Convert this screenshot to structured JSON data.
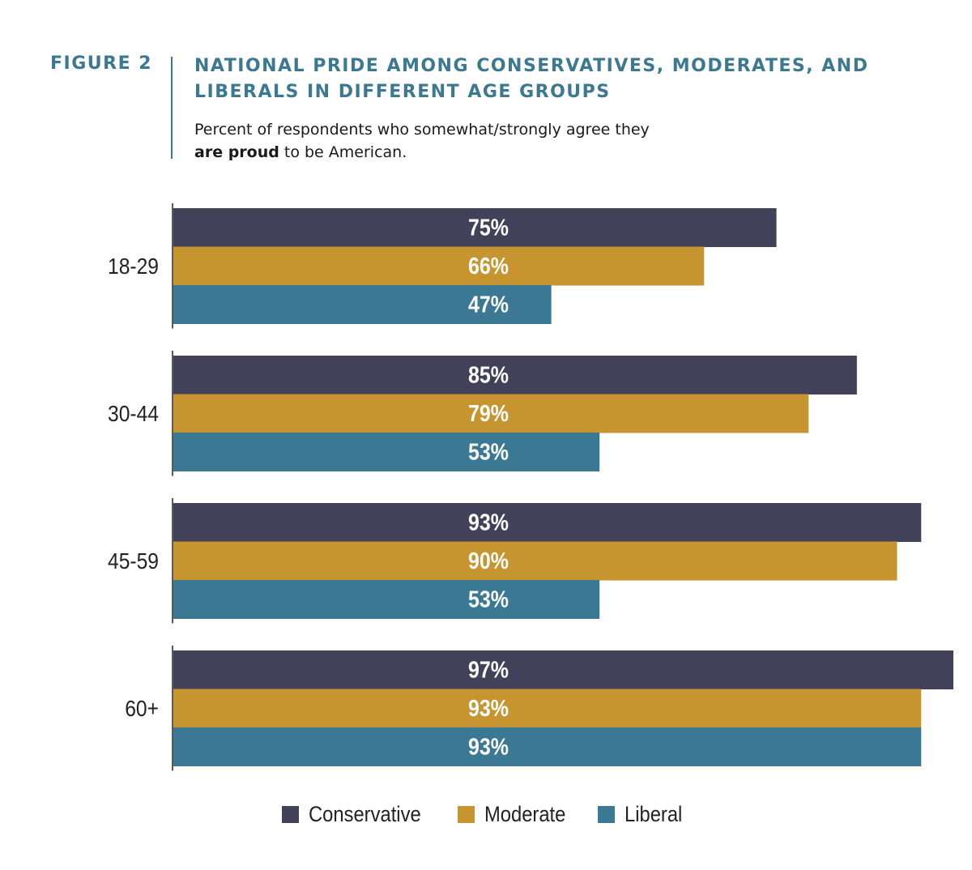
{
  "figure_label": "FIGURE 2",
  "title_lines": [
    "NATIONAL PRIDE AMONG CONSERVATIVES, MODERATES, AND",
    "LIBERALS IN DIFFERENT AGE GROUPS"
  ],
  "subtitle": {
    "line1": "Percent of respondents who somewhat/strongly agree they",
    "line2_bold": "are proud",
    "line2_rest": " to be American."
  },
  "chart_data": {
    "type": "bar",
    "orientation": "horizontal",
    "categories": [
      "18-29",
      "30-44",
      "45-59",
      "60+"
    ],
    "series": [
      {
        "name": "Conservative",
        "color": "#434159",
        "values": [
          75,
          85,
          93,
          97
        ]
      },
      {
        "name": "Moderate",
        "color": "#c6952f",
        "values": [
          66,
          79,
          90,
          93
        ]
      },
      {
        "name": "Liberal",
        "color": "#3a7893",
        "values": [
          47,
          53,
          53,
          93
        ]
      }
    ],
    "value_format": "{v}%",
    "xlim": [
      0,
      97
    ],
    "grid": false,
    "legend_position": "bottom-center"
  }
}
